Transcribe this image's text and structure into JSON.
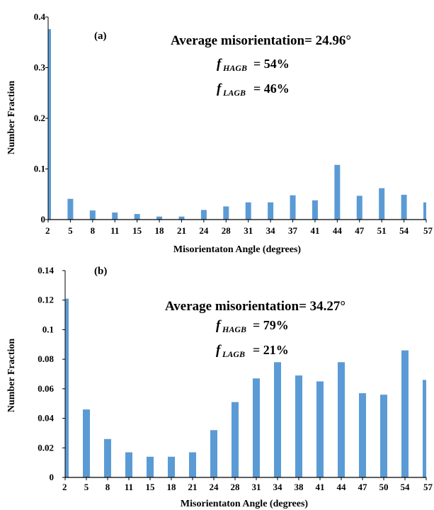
{
  "colors": {
    "bar": "#5B9BD5",
    "axis": "#000000"
  },
  "chart_data": [
    {
      "type": "bar",
      "panel_label": "(a)",
      "annotation": "Average misorientation= 24.96°",
      "fractions": [
        {
          "symbol": "f",
          "subscript": "HAGB",
          "value": "= 54%"
        },
        {
          "symbol": "f",
          "subscript": "LAGB",
          "value": "= 46%"
        }
      ],
      "categories": [
        "2",
        "5",
        "8",
        "11",
        "15",
        "18",
        "21",
        "24",
        "28",
        "31",
        "34",
        "37",
        "41",
        "44",
        "47",
        "51",
        "54",
        "57"
      ],
      "values": [
        0.376,
        0.041,
        0.018,
        0.014,
        0.011,
        0.006,
        0.006,
        0.019,
        0.026,
        0.034,
        0.034,
        0.048,
        0.038,
        0.108,
        0.047,
        0.062,
        0.049,
        0.034
      ],
      "xlabel": "Misorientaton Angle (degrees)",
      "ylabel": "Number Fraction",
      "ylim": [
        0,
        0.4
      ],
      "yticks": [
        0,
        0.1,
        0.2,
        0.3,
        0.4
      ],
      "ytick_labels": [
        "0",
        "0.1",
        "0.2",
        "0.3",
        "0.4"
      ],
      "grid": false
    },
    {
      "type": "bar",
      "panel_label": "(b)",
      "annotation": "Average misorientation= 34.27°",
      "fractions": [
        {
          "symbol": "f",
          "subscript": "HAGB",
          "value": "= 79%"
        },
        {
          "symbol": "f",
          "subscript": "LAGB",
          "value": "= 21%"
        }
      ],
      "categories": [
        "2",
        "5",
        "8",
        "11",
        "15",
        "18",
        "21",
        "24",
        "28",
        "31",
        "34",
        "38",
        "41",
        "44",
        "47",
        "50",
        "54",
        "57"
      ],
      "values": [
        0.121,
        0.046,
        0.026,
        0.017,
        0.014,
        0.014,
        0.017,
        0.032,
        0.051,
        0.067,
        0.078,
        0.069,
        0.065,
        0.078,
        0.057,
        0.056,
        0.086,
        0.066
      ],
      "xlabel": "Misorientaton Angle (degrees)",
      "ylabel": "Number Fraction",
      "ylim": [
        0,
        0.14
      ],
      "yticks": [
        0,
        0.02,
        0.04,
        0.06,
        0.08,
        0.1,
        0.12,
        0.14
      ],
      "ytick_labels": [
        "0",
        "0.02",
        "0.04",
        "0.06",
        "0.08",
        "0.1",
        "0.12",
        "0.14"
      ],
      "grid": false
    }
  ]
}
